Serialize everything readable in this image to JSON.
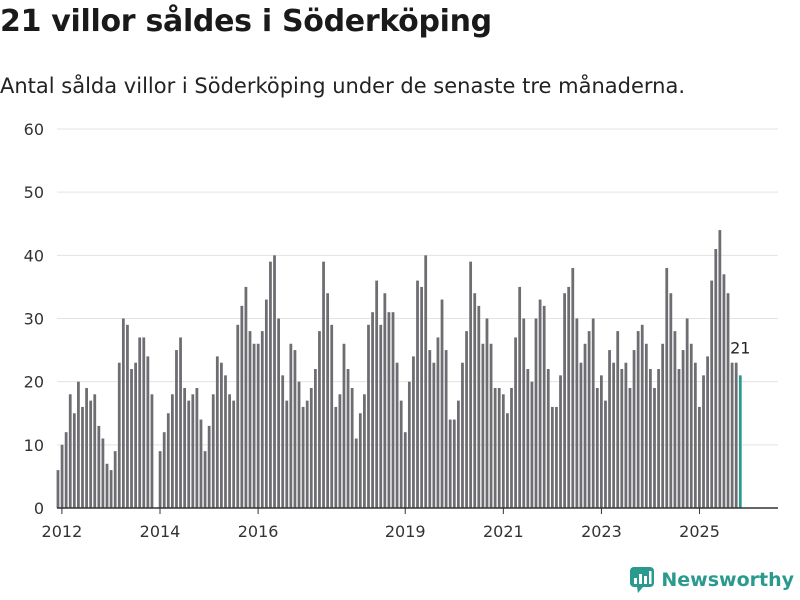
{
  "title": "21 villor såldes i Söderköping",
  "subtitle": "Antal sålda villor i Söderköping under de senaste tre månaderna.",
  "brand": "Newsworthy",
  "colors": {
    "bar": "#6e6d72",
    "highlight": "#2a9a8f",
    "grid": "#e3e3e3",
    "axis": "#333333",
    "text": "#333333"
  },
  "chart_data": {
    "type": "bar",
    "title": "21 villor såldes i Söderköping",
    "xlabel": "",
    "ylabel": "",
    "ylim": [
      0,
      60
    ],
    "yticks": [
      0,
      10,
      20,
      30,
      40,
      50,
      60
    ],
    "x_start": 2011.9,
    "x_end": 2026.6,
    "start": 2011.92,
    "step": 0.0833,
    "xticks": [
      2012,
      2014,
      2016,
      2019,
      2021,
      2023,
      2025
    ],
    "values": [
      6,
      10,
      12,
      18,
      15,
      20,
      16,
      19,
      17,
      18,
      13,
      11,
      7,
      6,
      9,
      23,
      30,
      29,
      22,
      23,
      27,
      27,
      24,
      18,
      0,
      9,
      12,
      15,
      18,
      25,
      27,
      19,
      17,
      18,
      19,
      14,
      9,
      13,
      18,
      24,
      23,
      21,
      18,
      17,
      29,
      32,
      35,
      28,
      26,
      26,
      28,
      33,
      39,
      40,
      30,
      21,
      17,
      26,
      25,
      20,
      16,
      17,
      19,
      22,
      28,
      39,
      34,
      29,
      16,
      18,
      26,
      22,
      19,
      11,
      15,
      18,
      29,
      31,
      36,
      29,
      34,
      31,
      31,
      23,
      17,
      12,
      20,
      24,
      36,
      35,
      40,
      25,
      23,
      27,
      33,
      25,
      14,
      14,
      17,
      23,
      28,
      39,
      34,
      32,
      26,
      30,
      26,
      19,
      19,
      18,
      15,
      19,
      27,
      35,
      30,
      22,
      20,
      30,
      33,
      32,
      22,
      16,
      16,
      21,
      34,
      35,
      38,
      30,
      23,
      26,
      28,
      30,
      19,
      21,
      17,
      25,
      23,
      28,
      22,
      23,
      19,
      25,
      28,
      29,
      26,
      22,
      19,
      22,
      26,
      38,
      34,
      28,
      22,
      25,
      30,
      26,
      23,
      16,
      21,
      24,
      36,
      41,
      44,
      37,
      34,
      23,
      23,
      21
    ],
    "highlight_label": "21"
  }
}
